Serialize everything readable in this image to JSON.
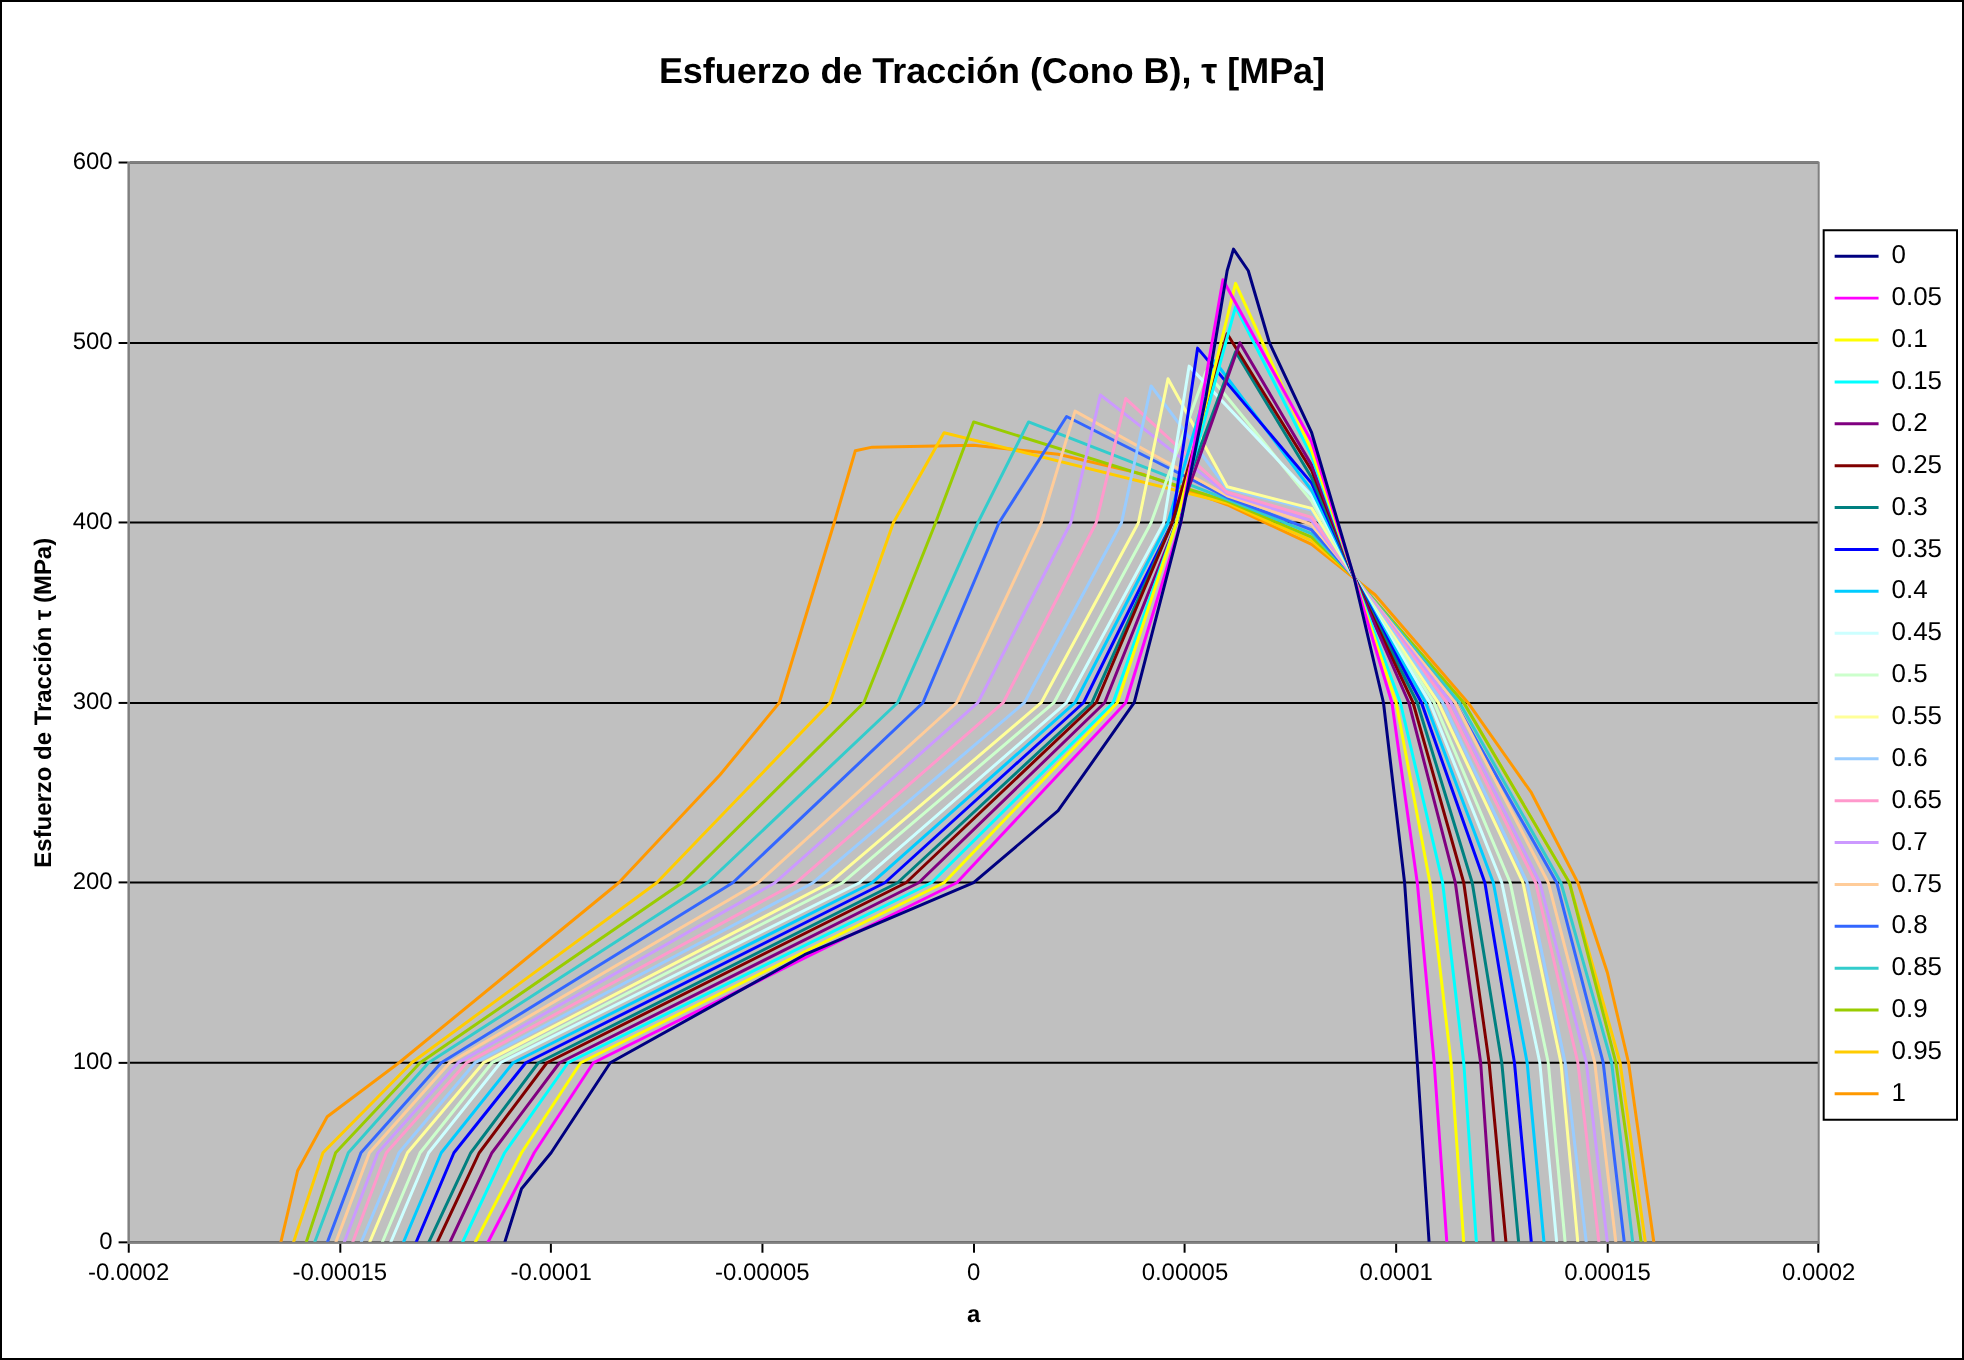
{
  "chart_data": {
    "type": "line",
    "title": "Esfuerzo de Tracción (Cono B), τ [MPa]",
    "xlabel": "a",
    "ylabel": "Esfuerzo de Tracción τ (MPa)",
    "xlim": [
      -0.0002,
      0.0002
    ],
    "xticks": [
      -0.0002,
      -0.00015,
      -0.0001,
      {
        "value": -5e-05,
        "label": "-0.00005"
      },
      0,
      {
        "value": 5e-05,
        "label": "0.00005"
      },
      0.0001,
      0.00015,
      0.0002
    ],
    "ylim": [
      0,
      600
    ],
    "yticks": [
      0,
      100,
      200,
      300,
      400,
      500,
      600
    ],
    "grid": "y",
    "legend": "right",
    "marker": "none",
    "line_style": "solid",
    "series": [
      {
        "name": "0",
        "color": "#000080",
        "x": [
          -0.000111,
          -0.000107,
          -0.0001,
          -8.6e-05,
          -4e-05,
          0,
          2e-05,
          3.8e-05,
          4.9e-05,
          5.5e-05,
          6e-05,
          6.15e-05,
          6.5e-05,
          7e-05,
          8e-05,
          9e-05,
          9.7e-05,
          0.0001,
          0.000102,
          0.000105,
          0.0001078
        ],
        "values": [
          0,
          30,
          50,
          100,
          160,
          200,
          240,
          300,
          400,
          470,
          540,
          552,
          540,
          500,
          450,
          370,
          300,
          240,
          200,
          100,
          0
        ]
      },
      {
        "name": "0.05",
        "color": "#ff00ff",
        "x": [
          -0.000115,
          -0.000104,
          -9e-05,
          -4e-06,
          3.6e-05,
          4.9e-05,
          5.9e-05,
          8e-05,
          9e-05,
          9.9e-05,
          0.000105,
          0.000109,
          0.000112
        ],
        "values": [
          0,
          50,
          100,
          200,
          300,
          400,
          535,
          445,
          370,
          300,
          200,
          100,
          0
        ]
      },
      {
        "name": "0.1",
        "color": "#ffff00",
        "x": [
          -0.000118,
          -0.000107,
          -9.3e-05,
          -7e-06,
          3.4e-05,
          4.8e-05,
          6.2e-05,
          8e-05,
          9e-05,
          0.0001,
          0.000108,
          0.000113,
          0.000116
        ],
        "values": [
          0,
          50,
          100,
          200,
          300,
          400,
          533,
          440,
          370,
          300,
          200,
          100,
          0
        ]
      },
      {
        "name": "0.15",
        "color": "#00ffff",
        "x": [
          -0.000121,
          -0.000111,
          -9.6e-05,
          -1e-05,
          3.3e-05,
          4.8e-05,
          6.2e-05,
          8e-05,
          9e-05,
          0.000101,
          0.000111,
          0.000116,
          0.000119
        ],
        "values": [
          0,
          50,
          100,
          200,
          300,
          400,
          520,
          437,
          370,
          300,
          200,
          100,
          0
        ]
      },
      {
        "name": "0.2",
        "color": "#800080",
        "x": [
          -0.000124,
          -0.000114,
          -9.8e-05,
          -1.3e-05,
          3.1e-05,
          4.8e-05,
          6.3e-05,
          8e-05,
          9e-05,
          0.000103,
          0.000114,
          0.00012,
          0.000123
        ],
        "values": [
          0,
          50,
          100,
          200,
          300,
          400,
          500,
          432,
          370,
          300,
          200,
          100,
          0
        ]
      },
      {
        "name": "0.25",
        "color": "#800000",
        "x": [
          -0.000127,
          -0.000117,
          -0.000101,
          -1.6e-05,
          2.9e-05,
          4.7e-05,
          6e-05,
          8e-05,
          9e-05,
          0.000104,
          0.000116,
          0.000122,
          0.000126
        ],
        "values": [
          0,
          50,
          100,
          200,
          300,
          400,
          505,
          429,
          370,
          300,
          200,
          100,
          0
        ]
      },
      {
        "name": "0.3",
        "color": "#008080",
        "x": [
          -0.000129,
          -0.000119,
          -0.000103,
          -1.8e-05,
          2.8e-05,
          4.7e-05,
          6.2e-05,
          8e-05,
          9e-05,
          0.000105,
          0.000118,
          0.000125,
          0.000129
        ],
        "values": [
          0,
          50,
          100,
          200,
          300,
          400,
          495,
          425,
          370,
          300,
          200,
          100,
          0
        ]
      },
      {
        "name": "0.35",
        "color": "#0000ff",
        "x": [
          -0.000132,
          -0.000123,
          -0.000106,
          -2.1e-05,
          2.6e-05,
          4.7e-05,
          5.3e-05,
          8e-05,
          9e-05,
          0.000106,
          0.000121,
          0.000128,
          0.000132
        ],
        "values": [
          0,
          50,
          100,
          200,
          300,
          400,
          497,
          422,
          370,
          300,
          200,
          100,
          0
        ]
      },
      {
        "name": "0.4",
        "color": "#00ccff",
        "x": [
          -0.000135,
          -0.000126,
          -0.000109,
          -2.4e-05,
          2.4e-05,
          4.6e-05,
          5.7e-05,
          8e-05,
          9e-05,
          0.000107,
          0.000123,
          0.000131,
          0.000135
        ],
        "values": [
          0,
          50,
          100,
          200,
          300,
          400,
          490,
          418,
          370,
          300,
          200,
          100,
          0
        ]
      },
      {
        "name": "0.45",
        "color": "#ccffff",
        "x": [
          -0.000138,
          -0.000129,
          -0.000112,
          -2.7e-05,
          2.2e-05,
          4.5e-05,
          5.1e-05,
          8e-05,
          9e-05,
          0.000108,
          0.000125,
          0.000134,
          0.000138
        ],
        "values": [
          0,
          50,
          100,
          200,
          300,
          400,
          487,
          415,
          370,
          300,
          200,
          100,
          0
        ]
      },
      {
        "name": "0.5",
        "color": "#ccffcc",
        "x": [
          -0.00014,
          -0.000131,
          -0.000114,
          -3.1e-05,
          1.9e-05,
          4.2e-05,
          5.5e-05,
          8e-05,
          9e-05,
          0.000109,
          0.000127,
          0.000136,
          0.00014
        ],
        "values": [
          0,
          50,
          100,
          200,
          300,
          400,
          484,
          412,
          370,
          300,
          200,
          100,
          0
        ]
      },
      {
        "name": "0.55",
        "color": "#ffff99",
        "x": [
          -0.000143,
          -0.000134,
          -0.000116,
          -3.4e-05,
          1.6e-05,
          3.9e-05,
          4.6e-05,
          6e-05,
          8e-05,
          9e-05,
          0.00011,
          0.00013,
          0.000139,
          0.000143
        ],
        "values": [
          0,
          50,
          100,
          200,
          300,
          400,
          480,
          420,
          408,
          370,
          300,
          200,
          100,
          0
        ]
      },
      {
        "name": "0.6",
        "color": "#99ccff",
        "x": [
          -0.000145,
          -0.000136,
          -0.000118,
          -3.8e-05,
          1.2e-05,
          3.5e-05,
          4.2e-05,
          6e-05,
          8e-05,
          9e-05,
          0.000111,
          0.000131,
          0.00014,
          0.000145
        ],
        "values": [
          0,
          50,
          100,
          200,
          300,
          400,
          476,
          419,
          407,
          370,
          300,
          200,
          100,
          0
        ]
      },
      {
        "name": "0.65",
        "color": "#ff99cc",
        "x": [
          -0.000147,
          -0.000139,
          -0.00012,
          -4.2e-05,
          7e-06,
          2.9e-05,
          3.6e-05,
          6e-05,
          8e-05,
          9e-05,
          0.000112,
          0.000133,
          0.000143,
          0.000148
        ],
        "values": [
          0,
          50,
          100,
          200,
          300,
          400,
          469,
          417,
          403,
          370,
          300,
          200,
          100,
          0
        ]
      },
      {
        "name": "0.7",
        "color": "#cc99ff",
        "x": [
          -0.000149,
          -0.000141,
          -0.000122,
          -4.7e-05,
          1e-06,
          2.3e-05,
          3e-05,
          6e-05,
          8e-05,
          9e-05,
          0.000113,
          0.000134,
          0.000145,
          0.00015
        ],
        "values": [
          0,
          50,
          100,
          200,
          300,
          400,
          471,
          416,
          401,
          370,
          300,
          200,
          100,
          0
        ]
      },
      {
        "name": "0.75",
        "color": "#ffcc99",
        "x": [
          -0.000151,
          -0.000143,
          -0.000124,
          -5.1e-05,
          -4e-06,
          1.6e-05,
          2.4e-05,
          6e-05,
          8e-05,
          9e-05,
          0.000114,
          0.000136,
          0.000147,
          0.000152
        ],
        "values": [
          0,
          50,
          100,
          200,
          300,
          400,
          462,
          415,
          399,
          370,
          300,
          200,
          100,
          0
        ]
      },
      {
        "name": "0.8",
        "color": "#3366ff",
        "x": [
          -0.000153,
          -0.000145,
          -0.000126,
          -5.7e-05,
          -1.2e-05,
          6e-06,
          2.2e-05,
          6e-05,
          8e-05,
          9e-05,
          0.000114,
          0.000138,
          0.000149,
          0.000154
        ],
        "values": [
          0,
          50,
          100,
          200,
          300,
          400,
          459,
          414,
          396,
          370,
          300,
          200,
          100,
          0
        ]
      },
      {
        "name": "0.85",
        "color": "#33cccc",
        "x": [
          -0.000156,
          -0.000148,
          -0.000129,
          -6.3e-05,
          -1.8e-05,
          1e-06,
          1.3e-05,
          6e-05,
          8e-05,
          9e-05,
          0.000115,
          0.000139,
          0.000151,
          0.000156
        ],
        "values": [
          0,
          50,
          100,
          200,
          300,
          400,
          456,
          413,
          394,
          370,
          300,
          200,
          100,
          0
        ]
      },
      {
        "name": "0.9",
        "color": "#99cc00",
        "x": [
          -0.000158,
          -0.000151,
          -0.000131,
          -6.9e-05,
          -2.6e-05,
          -9e-06,
          0,
          6e-05,
          8e-05,
          9e-05,
          0.000116,
          0.000141,
          0.000152,
          0.000158
        ],
        "values": [
          0,
          50,
          100,
          200,
          300,
          400,
          456,
          412,
          392,
          370,
          300,
          200,
          100,
          0
        ]
      },
      {
        "name": "0.95",
        "color": "#ffcc00",
        "x": [
          -0.000161,
          -0.000154,
          -0.000133,
          -7.5e-05,
          -3.4e-05,
          -1.9e-05,
          -7e-06,
          6e-05,
          8e-05,
          9e-05,
          0.000116,
          0.000141,
          0.000153,
          0.000159
        ],
        "values": [
          0,
          50,
          100,
          200,
          300,
          400,
          450,
          411,
          390,
          370,
          300,
          200,
          100,
          0
        ]
      },
      {
        "name": "1",
        "color": "#ff9900",
        "x": [
          -0.000164,
          -0.00016,
          -0.000153,
          -0.000136,
          -0.00011,
          -8.4e-05,
          -6e-05,
          -4.6e-05,
          -3.3e-05,
          -2.8e-05,
          -2.4e-05,
          0,
          2e-05,
          4e-05,
          6e-05,
          8e-05,
          9.5e-05,
          0.000117,
          0.000132,
          0.000143,
          0.00015,
          0.000155,
          0.000158,
          0.000161
        ],
        "values": [
          0,
          40,
          70,
          100,
          150,
          200,
          260,
          300,
          400,
          440,
          442,
          443,
          438,
          427,
          410,
          388,
          360,
          300,
          250,
          200,
          150,
          100,
          50,
          0
        ]
      }
    ]
  }
}
